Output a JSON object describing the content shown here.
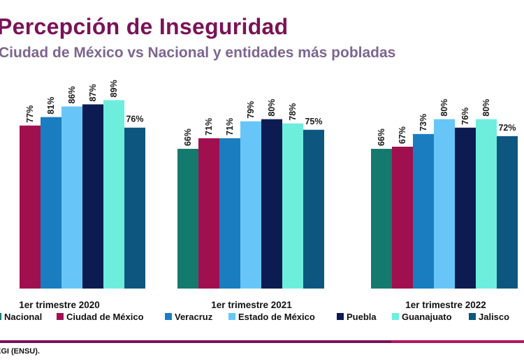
{
  "header": {
    "title": "Percepción de Inseguridad",
    "subtitle": "Ciudad de México vs Nacional y entidades más pobladas"
  },
  "source": "EGI (ENSU).",
  "chart_data": {
    "type": "bar",
    "title": "Percepción de Inseguridad",
    "subtitle": "Ciudad de México vs Nacional y entidades más pobladas",
    "categories": [
      "1er trimestre 2020",
      "1er trimestre 2021",
      "1er trimestre 2022"
    ],
    "series": [
      {
        "name": "Nacional",
        "color": "#157a6e",
        "values": [
          null,
          66,
          66
        ],
        "labels": [
          "",
          "66%",
          "66%"
        ]
      },
      {
        "name": "Ciudad de México",
        "color": "#a0104f",
        "values": [
          77,
          71,
          67
        ],
        "labels": [
          "77%",
          "71%",
          "67%"
        ]
      },
      {
        "name": "Veracruz",
        "color": "#1a7dc0",
        "values": [
          81,
          71,
          73
        ],
        "labels": [
          "81%",
          "71%",
          "73%"
        ]
      },
      {
        "name": "Estado de México",
        "color": "#67c6f7",
        "values": [
          86,
          79,
          80
        ],
        "labels": [
          "86%",
          "79%",
          "80%"
        ]
      },
      {
        "name": "Puebla",
        "color": "#0c1c52",
        "values": [
          87,
          80,
          76
        ],
        "labels": [
          "87%",
          "80%",
          "76%"
        ]
      },
      {
        "name": "Guanajuato",
        "color": "#6deedd",
        "values": [
          89,
          78,
          80
        ],
        "labels": [
          "89%",
          "78%",
          "80%"
        ]
      },
      {
        "name": "Jalisco",
        "color": "#0d5680",
        "values": [
          76,
          75,
          72
        ],
        "labels": [
          "76%",
          "75%",
          "72%"
        ]
      }
    ],
    "ylim": [
      0,
      100
    ],
    "legend_position": "bottom",
    "grid": false,
    "xlabel": "",
    "ylabel": ""
  }
}
